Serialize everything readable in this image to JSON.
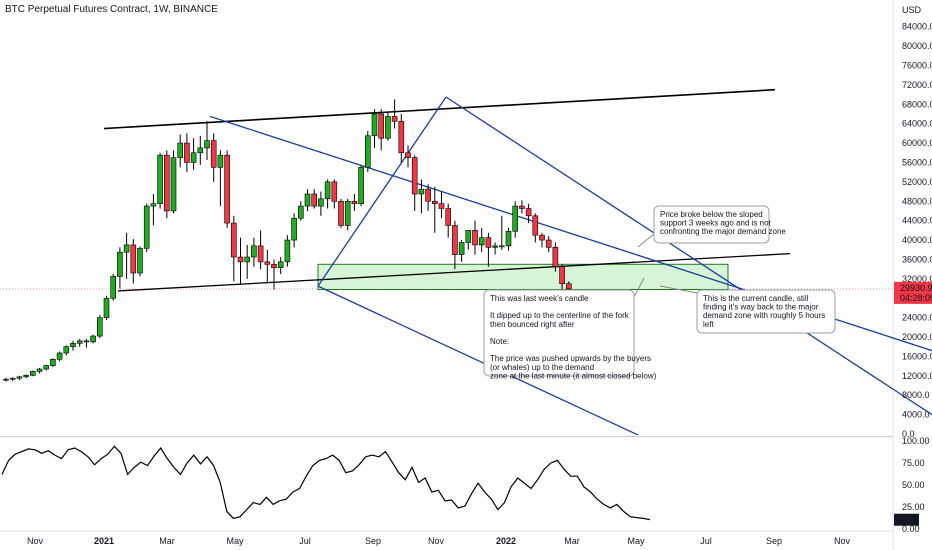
{
  "header": {
    "title": "BTC Perpetual Futures Contract, 1W, BINANCE",
    "currency": "USD"
  },
  "chart_data": {
    "type": "candlestick",
    "symbol": "BTC Perpetual Futures Contract",
    "interval": "1W",
    "exchange": "BINANCE",
    "price_axis": {
      "ticks": [
        "84000.0",
        "80000.0",
        "76000.0",
        "72000.0",
        "68000.0",
        "64000.0",
        "60000.0",
        "56000.0",
        "52000.0",
        "48000.0",
        "44000.0",
        "40000.0",
        "36000.0",
        "32000.0",
        "28000.0",
        "24000.0",
        "20000.0",
        "16000.0",
        "12000.0",
        "8000.0",
        "4000.0",
        "0.0"
      ],
      "ylim": [
        0,
        86000
      ]
    },
    "time_axis": {
      "ticks": [
        "Nov",
        "2021",
        "Mar",
        "May",
        "Jul",
        "Sep",
        "Nov",
        "2022",
        "Mar",
        "May",
        "Jul",
        "Sep",
        "Nov"
      ]
    },
    "current_price": {
      "value": "29930.9",
      "countdown": "04:28:05",
      "color": "#f23645"
    },
    "colors": {
      "up": "#22ab22",
      "down": "#f23645",
      "pitchfork": "#1c3f99",
      "trendline": "#000000",
      "demand_zone": "#c8f2c8"
    },
    "candles": [
      [
        11200,
        11600,
        10800,
        11300
      ],
      [
        11300,
        11700,
        10900,
        11500
      ],
      [
        11500,
        12000,
        11100,
        11800
      ],
      [
        11800,
        12300,
        11500,
        12100
      ],
      [
        12100,
        13100,
        11900,
        12900
      ],
      [
        12900,
        13600,
        12500,
        13400
      ],
      [
        13400,
        14300,
        13100,
        14100
      ],
      [
        14100,
        15600,
        13800,
        15400
      ],
      [
        15400,
        17000,
        15000,
        16700
      ],
      [
        16700,
        18300,
        16200,
        18000
      ],
      [
        18000,
        19200,
        17200,
        18700
      ],
      [
        18700,
        19600,
        18000,
        19200
      ],
      [
        19200,
        19600,
        17800,
        19000
      ],
      [
        19000,
        20500,
        18700,
        20200
      ],
      [
        20200,
        24500,
        19800,
        24000
      ],
      [
        24000,
        28500,
        23500,
        28000
      ],
      [
        28000,
        33000,
        27500,
        32500
      ],
      [
        32500,
        38500,
        30000,
        37500
      ],
      [
        37500,
        41500,
        32000,
        39000
      ],
      [
        39000,
        40200,
        31000,
        33200
      ],
      [
        33200,
        38700,
        32500,
        38300
      ],
      [
        38300,
        47500,
        37500,
        47000
      ],
      [
        47000,
        49500,
        43000,
        47500
      ],
      [
        47500,
        58000,
        46500,
        57500
      ],
      [
        57500,
        58500,
        44500,
        46000
      ],
      [
        46000,
        58500,
        45500,
        57000
      ],
      [
        57000,
        61800,
        55000,
        60000
      ],
      [
        60000,
        62000,
        54000,
        56000
      ],
      [
        56000,
        61000,
        54500,
        58000
      ],
      [
        58000,
        61500,
        55500,
        59000
      ],
      [
        59000,
        64500,
        56500,
        60500
      ],
      [
        60500,
        62000,
        52000,
        55000
      ],
      [
        55000,
        58500,
        47000,
        57500
      ],
      [
        57500,
        58500,
        42500,
        43500
      ],
      [
        43500,
        45000,
        31500,
        36500
      ],
      [
        36500,
        40500,
        31000,
        35500
      ],
      [
        35500,
        39000,
        32000,
        36500
      ],
      [
        36500,
        40500,
        34500,
        38800
      ],
      [
        38800,
        42000,
        34000,
        35500
      ],
      [
        35500,
        38000,
        31000,
        35000
      ],
      [
        35000,
        36000,
        29800,
        34300
      ],
      [
        34300,
        36500,
        33000,
        35500
      ],
      [
        35500,
        41000,
        34500,
        40000
      ],
      [
        40000,
        45500,
        38500,
        44500
      ],
      [
        44500,
        48000,
        44000,
        47000
      ],
      [
        47000,
        50500,
        46000,
        49500
      ],
      [
        49500,
        50500,
        46500,
        47000
      ],
      [
        47000,
        50000,
        45000,
        48500
      ],
      [
        48500,
        52500,
        46500,
        52000
      ],
      [
        52000,
        52500,
        46500,
        48000
      ],
      [
        48000,
        48500,
        42500,
        43000
      ],
      [
        43000,
        48500,
        42000,
        48000
      ],
      [
        48000,
        49500,
        46000,
        47500
      ],
      [
        47500,
        55500,
        47000,
        55000
      ],
      [
        55000,
        62500,
        54000,
        61500
      ],
      [
        61500,
        67000,
        59000,
        66000
      ],
      [
        66000,
        67000,
        58500,
        61000
      ],
      [
        61000,
        66500,
        60500,
        65500
      ],
      [
        65500,
        69000,
        63000,
        64500
      ],
      [
        64500,
        66000,
        56000,
        58000
      ],
      [
        58000,
        59500,
        55000,
        57000
      ],
      [
        57000,
        57500,
        46000,
        49500
      ],
      [
        49500,
        52500,
        45500,
        50500
      ],
      [
        50500,
        51500,
        46000,
        48000
      ],
      [
        48000,
        51000,
        41500,
        47500
      ],
      [
        47500,
        50000,
        44500,
        46500
      ],
      [
        46500,
        47500,
        40500,
        43000
      ],
      [
        43000,
        44000,
        34000,
        37000
      ],
      [
        37000,
        40000,
        35500,
        39500
      ],
      [
        39500,
        41500,
        38000,
        42000
      ],
      [
        42000,
        44000,
        37000,
        39000
      ],
      [
        39000,
        42500,
        37500,
        40500
      ],
      [
        40500,
        41500,
        34500,
        38500
      ],
      [
        38500,
        39500,
        37000,
        38800
      ],
      [
        38800,
        45000,
        38000,
        38800
      ],
      [
        38800,
        42500,
        37800,
        41800
      ],
      [
        41800,
        48000,
        40500,
        47000
      ],
      [
        47000,
        48200,
        45500,
        46500
      ],
      [
        46500,
        47500,
        43500,
        45000
      ],
      [
        45000,
        45500,
        39500,
        41000
      ],
      [
        41000,
        41500,
        38500,
        40000
      ],
      [
        40000,
        40800,
        37500,
        38500
      ],
      [
        38500,
        39500,
        33500,
        34500
      ],
      [
        34500,
        35000,
        28500,
        31000
      ],
      [
        31000,
        31500,
        28500,
        29930.9
      ]
    ],
    "oscillator": {
      "ticks": [
        "100.00",
        "75.00",
        "50.00",
        "25.00",
        "0.00"
      ],
      "ylim": [
        0,
        100
      ],
      "current_value": "10.55",
      "values": [
        62,
        78,
        85,
        88,
        91,
        90,
        86,
        89,
        84,
        80,
        90,
        92,
        88,
        82,
        73,
        80,
        85,
        94,
        86,
        62,
        70,
        76,
        72,
        83,
        92,
        80,
        70,
        62,
        75,
        84,
        74,
        82,
        72,
        53,
        20,
        12,
        14,
        22,
        30,
        28,
        36,
        28,
        32,
        34,
        42,
        46,
        60,
        72,
        78,
        80,
        84,
        78,
        64,
        66,
        73,
        82,
        84,
        82,
        88,
        76,
        64,
        56,
        70,
        53,
        58,
        42,
        44,
        32,
        33,
        24,
        26,
        40,
        52,
        42,
        34,
        22,
        30,
        48,
        58,
        52,
        46,
        56,
        68,
        75,
        78,
        68,
        60,
        60,
        48,
        42,
        34,
        28,
        24,
        28,
        20,
        14,
        13,
        12,
        10.55
      ]
    },
    "annotations": [
      {
        "lines": [
          "Price broke below the sloped",
          "support 3 weeks ago and is not",
          "confronting the major demand zone"
        ]
      },
      {
        "lines": [
          "This was last week's candle",
          "",
          "It dipped up to the centerline of the fork",
          "then bounced right after",
          "",
          "Note:",
          "",
          "The price was pushed upwards by the buyers",
          "(or whales) up to the demand",
          "zone at the last minute (it almost closed below)"
        ]
      },
      {
        "lines": [
          "This is the current candle, still",
          "finding it's way back to the major",
          "demand zone with roughly 5 hours",
          "left"
        ]
      }
    ]
  }
}
